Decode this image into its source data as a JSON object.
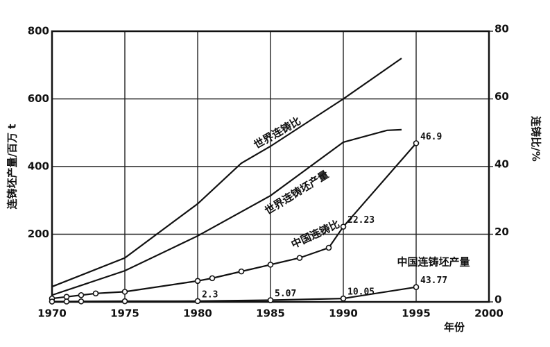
{
  "chart_data": {
    "type": "line",
    "y_label": "连铸坯产量/百万 t",
    "y2_label": "连铸比/%",
    "x_label": "年份",
    "xlim": [
      1970,
      2000
    ],
    "xticks": [
      1970,
      1975,
      1980,
      1985,
      1990,
      1995,
      2000
    ],
    "ylim": [
      0,
      800
    ],
    "yticks": [
      200,
      400,
      600,
      800
    ],
    "y2lim": [
      0,
      80
    ],
    "y2ticks": [
      0,
      20,
      40,
      60,
      80
    ],
    "grid": true,
    "series": [
      {
        "name": "世界连铸比",
        "axis": "y2",
        "color": "#111111",
        "marker": "none",
        "x": [
          1970,
          1975,
          1980,
          1983,
          1985,
          1990,
          1994
        ],
        "values": [
          4.5,
          13,
          29,
          41,
          46,
          60,
          72
        ]
      },
      {
        "name": "世界连铸坯产量",
        "axis": "y",
        "color": "#111111",
        "marker": "none",
        "x": [
          1970,
          1975,
          1980,
          1985,
          1990,
          1993,
          1994
        ],
        "values": [
          20,
          92,
          195,
          314,
          472,
          507,
          509
        ]
      },
      {
        "name": "中国连铸比",
        "axis": "y2",
        "color": "#111111",
        "marker": "circle",
        "x": [
          1970,
          1971,
          1972,
          1973,
          1975,
          1980,
          1981,
          1983,
          1985,
          1987,
          1989,
          1990,
          1995
        ],
        "values": [
          1,
          1.5,
          2,
          2.5,
          3,
          6.2,
          7,
          9,
          11,
          13,
          16,
          22.23,
          46.9
        ],
        "value_labels": [
          null,
          null,
          null,
          null,
          null,
          null,
          null,
          null,
          null,
          null,
          null,
          "22.23",
          "46.9"
        ]
      },
      {
        "name": "中国连铸坯产量",
        "axis": "y",
        "color": "#111111",
        "marker": "circle",
        "x": [
          1970,
          1971,
          1972,
          1975,
          1980,
          1985,
          1990,
          1995
        ],
        "values": [
          1,
          1.2,
          1.5,
          2,
          2.3,
          5.07,
          10.05,
          43.77
        ],
        "value_labels": [
          null,
          null,
          null,
          null,
          "2.3",
          "5.07",
          "10.05",
          "43.77"
        ]
      }
    ]
  }
}
